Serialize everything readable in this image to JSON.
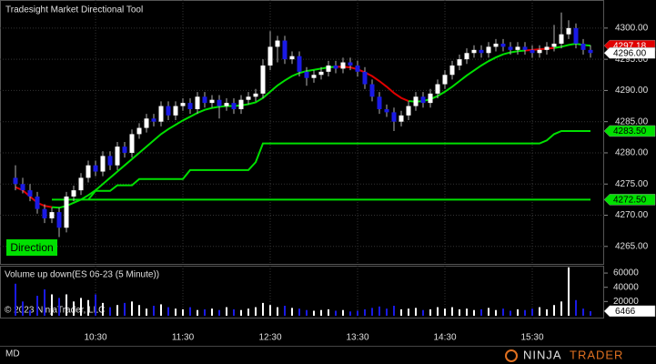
{
  "chart_data": [
    {
      "type": "candlestick",
      "title": "Tradesight Market Directional Tool",
      "badge": "Direction",
      "badge_color": "#00e000",
      "up_color": "#ffffff",
      "down_color": "#1a1ae6",
      "wick_color": "#b0b0b0",
      "grid": true,
      "categories": [
        null,
        null,
        null,
        null,
        null,
        null,
        null,
        null,
        null,
        null,
        null,
        "10:30",
        null,
        null,
        null,
        null,
        null,
        null,
        null,
        null,
        null,
        null,
        null,
        "11:30",
        null,
        null,
        null,
        null,
        null,
        null,
        null,
        null,
        null,
        null,
        null,
        "12:30",
        null,
        null,
        null,
        null,
        null,
        null,
        null,
        null,
        null,
        null,
        null,
        "13:30",
        null,
        null,
        null,
        null,
        null,
        null,
        null,
        null,
        null,
        null,
        null,
        "14:30",
        null,
        null,
        null,
        null,
        null,
        null,
        null,
        null,
        null,
        null,
        null,
        "15:30",
        null,
        null,
        null,
        null,
        null,
        null,
        null,
        null
      ],
      "open": [
        4276,
        4275,
        4274,
        4273,
        4271,
        4269.5,
        4270.5,
        4268,
        4273,
        4274,
        4276,
        4278,
        4277,
        4279.5,
        4278,
        4281,
        4280,
        4283,
        4284,
        4285.5,
        4285,
        4287.5,
        4286,
        4287.5,
        4288,
        4287,
        4289,
        4288,
        4288.5,
        4287.5,
        4288,
        4287,
        4288.5,
        4289,
        4289.5,
        4294,
        4297,
        4298,
        4295,
        4295.5,
        4293,
        4292,
        4292.5,
        4293,
        4294,
        4293.5,
        4294.5,
        4294,
        4293,
        4291,
        4289,
        4287,
        4286.5,
        4285,
        4286,
        4287.5,
        4289,
        4288,
        4289.5,
        4291,
        4292.5,
        4294,
        4295,
        4296,
        4296.5,
        4296,
        4297,
        4297.5,
        4297,
        4296.5,
        4297,
        4296.5,
        4296,
        4296.5,
        4297,
        4297.5,
        4299,
        4300,
        4297.5,
        4296.5
      ],
      "high": [
        4278,
        4276,
        4275,
        4273.75,
        4271.75,
        4271.25,
        4271.25,
        4273.75,
        4274.75,
        4276.75,
        4278.75,
        4278.75,
        4280.25,
        4280.25,
        4281.75,
        4281.75,
        4283.75,
        4284.75,
        4286.25,
        4286.25,
        4288.25,
        4288.25,
        4288.25,
        4288.75,
        4288.75,
        4289.75,
        4289.75,
        4289.25,
        4289.25,
        4288.75,
        4288.75,
        4289.25,
        4289.75,
        4290.25,
        4295,
        4299.5,
        4298.75,
        4298.75,
        4296.25,
        4296.25,
        4293.75,
        4293.25,
        4293.75,
        4294.75,
        4294.75,
        4295.25,
        4295.25,
        4294.75,
        4293.75,
        4291.75,
        4289.75,
        4287.75,
        4287.25,
        4286.75,
        4288.25,
        4289.75,
        4289.75,
        4290.25,
        4291.75,
        4293.25,
        4294.75,
        4295.75,
        4296.75,
        4297.25,
        4297.25,
        4297.75,
        4298.25,
        4298.25,
        4297.75,
        4297.75,
        4297.75,
        4297.25,
        4297.25,
        4297.75,
        4300.5,
        4302.5,
        4301.25,
        4300.75,
        4298.25,
        4297.25
      ],
      "low": [
        4274,
        4273.5,
        4272.25,
        4270.25,
        4268.75,
        4268.75,
        4266.5,
        4267.25,
        4272.25,
        4273.25,
        4275.25,
        4276.25,
        4276.25,
        4277.25,
        4277.25,
        4279.25,
        4279.25,
        4282.25,
        4283.25,
        4284.25,
        4284.25,
        4285.25,
        4285.25,
        4286.75,
        4286.25,
        4286.25,
        4287.25,
        4287.25,
        4285.5,
        4286.75,
        4286.25,
        4286.25,
        4287.75,
        4288.25,
        4288.75,
        4293.25,
        4294.5,
        4294.25,
        4294.25,
        4292.25,
        4290.75,
        4291.25,
        4291.75,
        4292.25,
        4292.75,
        4292.75,
        4293.25,
        4292.25,
        4290.25,
        4288.25,
        4286.25,
        4285.75,
        4283.5,
        4284.25,
        4285.25,
        4286.75,
        4287.25,
        4287.25,
        4288.75,
        4290.25,
        4291.75,
        4293.25,
        4294.25,
        4295.25,
        4295.25,
        4295.25,
        4296.25,
        4296.25,
        4295.75,
        4295.75,
        4295.75,
        4295.25,
        4295.25,
        4295.75,
        4296.25,
        4296.75,
        4298.25,
        4296.75,
        4295.75,
        4295.25
      ],
      "close": [
        4275,
        4274,
        4273,
        4271,
        4269.5,
        4270.5,
        4268,
        4273,
        4274,
        4276,
        4278,
        4277,
        4279.5,
        4278,
        4281,
        4280,
        4283,
        4284,
        4285.5,
        4285,
        4287.5,
        4286,
        4287.5,
        4288,
        4287,
        4289,
        4288,
        4288.5,
        4287.5,
        4288,
        4287,
        4288.5,
        4289,
        4289.5,
        4294,
        4297,
        4298,
        4295,
        4295.5,
        4293,
        4292,
        4292.5,
        4293,
        4294,
        4293.5,
        4294.5,
        4294,
        4293,
        4291,
        4289,
        4287,
        4286.5,
        4285,
        4286,
        4287.5,
        4289,
        4288,
        4289.5,
        4291,
        4292.5,
        4294,
        4295,
        4296,
        4296.5,
        4296,
        4297,
        4297.5,
        4297,
        4296.5,
        4297,
        4296.5,
        4296,
        4296.5,
        4297,
        4297.5,
        4299,
        4300,
        4297.5,
        4296.5,
        4296
      ],
      "ylim": [
        4262.2,
        4304.5
      ],
      "yticks": [
        {
          "value": 4265,
          "label": "4265.00"
        },
        {
          "value": 4270,
          "label": "4270.00"
        },
        {
          "value": 4275,
          "label": "4275.00"
        },
        {
          "value": 4280,
          "label": "4280.00"
        },
        {
          "value": 4285,
          "label": "4285.00"
        },
        {
          "value": 4290,
          "label": "4290.00"
        },
        {
          "value": 4295,
          "label": "4295.00"
        },
        {
          "value": 4300,
          "label": "4300.00"
        }
      ],
      "lines": [
        {
          "color": "#00e000",
          "values": [
            null,
            null,
            null,
            null,
            null,
            4271.3,
            4271.2,
            4271.5,
            4272,
            4272.5,
            4273.2,
            4274,
            4275,
            4276,
            4277,
            4278,
            4279,
            4280,
            4281,
            4282,
            4283,
            4283.8,
            4284.5,
            4285.2,
            4285.8,
            4286.4,
            4286.9,
            4287.2,
            4287.4,
            4287.5,
            4287.5,
            4287.6,
            4287.8,
            4288.1,
            4288.8,
            4289.8,
            4290.8,
            4291.6,
            4292.3,
            4292.8,
            4293.1,
            4293.3,
            4293.5,
            4293.7,
            4293.8,
            null,
            null,
            null,
            null,
            null,
            null,
            null,
            null,
            null,
            4288.3,
            4288.2,
            4288.3,
            4288.6,
            4289.1,
            4289.8,
            4290.6,
            4291.5,
            4292.4,
            4293.2,
            4294,
            4294.7,
            4295.3,
            4295.8,
            4296.1,
            4296.3,
            4296.4,
            null,
            null,
            null,
            4296.8,
            4297,
            4297.3,
            4297.5,
            4297.3,
            4297.18
          ]
        },
        {
          "color": "#e00000",
          "values": [
            4274.5,
            4274,
            4273,
            4272,
            4271.5,
            4271.3,
            null,
            null,
            null,
            null,
            null,
            null,
            null,
            null,
            null,
            null,
            null,
            null,
            null,
            null,
            null,
            null,
            null,
            null,
            null,
            null,
            null,
            null,
            null,
            null,
            null,
            null,
            null,
            null,
            null,
            null,
            null,
            null,
            null,
            null,
            null,
            null,
            null,
            null,
            4293.8,
            4293.8,
            4293.7,
            4293.4,
            4292.9,
            4292.3,
            4291.5,
            4290.6,
            4289.6,
            4288.8,
            4288.3,
            null,
            null,
            null,
            null,
            null,
            null,
            null,
            null,
            null,
            null,
            null,
            null,
            null,
            null,
            null,
            4296.4,
            4296.5,
            4296.6,
            4296.7,
            4296.8,
            null,
            null,
            null,
            null,
            null
          ]
        },
        {
          "color": "#00e000",
          "values": [
            null,
            null,
            null,
            null,
            null,
            null,
            null,
            null,
            null,
            null,
            4272.5,
            4273.9,
            4273.9,
            4273.9,
            4274.8,
            4274.8,
            4274.8,
            4275.8,
            4275.8,
            4275.8,
            4275.8,
            4275.8,
            4275.8,
            4275.8,
            4277.25,
            4277.25,
            4277.25,
            4277.25,
            4277.25,
            4277.25,
            4277.25,
            4277.25,
            4277.25,
            4278.5,
            4281.5,
            4281.5,
            4281.5,
            4281.5,
            4281.5,
            4281.5,
            4281.5,
            4281.5,
            4281.5,
            4281.5,
            4281.5,
            4281.5,
            4281.5,
            4281.5,
            4281.5,
            4281.5,
            4281.5,
            4281.5,
            4281.5,
            4281.5,
            4281.5,
            4281.5,
            4281.5,
            4281.5,
            4281.5,
            4281.5,
            4281.5,
            4281.5,
            4281.5,
            4281.5,
            4281.5,
            4281.5,
            4281.5,
            4281.5,
            4281.5,
            4281.5,
            4281.5,
            4281.5,
            4281.5,
            4282,
            4283,
            4283.5,
            4283.5,
            4283.5,
            4283.5,
            4283.5
          ]
        },
        {
          "color": "#00e000",
          "values": [
            null,
            null,
            null,
            null,
            null,
            4272.5,
            4272.5,
            4272.5,
            4272.5,
            4272.5,
            4272.5,
            4272.5,
            4272.5,
            4272.5,
            4272.5,
            4272.5,
            4272.5,
            4272.5,
            4272.5,
            4272.5,
            4272.5,
            4272.5,
            4272.5,
            4272.5,
            4272.5,
            4272.5,
            4272.5,
            4272.5,
            4272.5,
            4272.5,
            4272.5,
            4272.5,
            4272.5,
            4272.5,
            4272.5,
            4272.5,
            4272.5,
            4272.5,
            4272.5,
            4272.5,
            4272.5,
            4272.5,
            4272.5,
            4272.5,
            4272.5,
            4272.5,
            4272.5,
            4272.5,
            4272.5,
            4272.5,
            4272.5,
            4272.5,
            4272.5,
            4272.5,
            4272.5,
            4272.5,
            4272.5,
            4272.5,
            4272.5,
            4272.5,
            4272.5,
            4272.5,
            4272.5,
            4272.5,
            4272.5,
            4272.5,
            4272.5,
            4272.5,
            4272.5,
            4272.5,
            4272.5,
            4272.5,
            4272.5,
            4272.5,
            4272.5,
            4272.5,
            4272.5,
            4272.5,
            4272.5,
            4272.5
          ]
        }
      ],
      "price_markers": [
        {
          "value": 4297.18,
          "color": "#e00000",
          "text_color": "#ffffff"
        },
        {
          "value": 4296,
          "label": "4296.00",
          "color": "#ffffff",
          "text_color": "#000000"
        },
        {
          "value": 4283.5,
          "label": "4283.50",
          "color": "#00e000",
          "text_color": "#000000"
        },
        {
          "value": 4272.5,
          "label": "4272.50",
          "color": "#00e000",
          "text_color": "#000000"
        }
      ]
    },
    {
      "type": "bar",
      "title": "Volume up down(ES 06-23 (5 Minute))",
      "values": [
        45000,
        20000,
        8000,
        28000,
        37000,
        30000,
        25000,
        30000,
        20000,
        25000,
        22000,
        30000,
        18000,
        12000,
        15000,
        18000,
        20000,
        15000,
        10000,
        14000,
        16000,
        12000,
        10000,
        9000,
        12000,
        8000,
        9000,
        10000,
        8000,
        12000,
        9000,
        8000,
        10000,
        12000,
        18000,
        15000,
        12000,
        14000,
        11000,
        10000,
        8000,
        7000,
        8000,
        9000,
        7000,
        8000,
        6000,
        7000,
        9000,
        11000,
        13000,
        10000,
        14000,
        9000,
        10000,
        11000,
        8000,
        9000,
        12000,
        10000,
        12000,
        9000,
        10000,
        8000,
        9000,
        11000,
        8000,
        10000,
        7000,
        9000,
        8000,
        10000,
        12000,
        9000,
        15000,
        20000,
        68000,
        22000,
        10000,
        6466
      ],
      "ylim": [
        -3900,
        70300
      ],
      "yticks": [
        20000,
        40000,
        60000
      ]
    }
  ],
  "footer": {
    "copyright": "© 2023 NinjaTrader, LLC",
    "status": "MD",
    "brand_a": "NINJA",
    "brand_b": "TRADER"
  }
}
